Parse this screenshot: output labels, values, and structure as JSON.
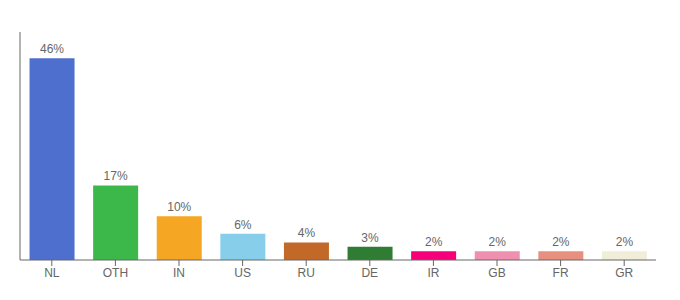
{
  "chart_data": {
    "type": "bar",
    "categories": [
      "NL",
      "OTH",
      "IN",
      "US",
      "RU",
      "DE",
      "IR",
      "GB",
      "FR",
      "GR"
    ],
    "values": [
      46,
      17,
      10,
      6,
      4,
      3,
      2,
      2,
      2,
      2
    ],
    "value_labels": [
      "46%",
      "17%",
      "10%",
      "6%",
      "4%",
      "3%",
      "2%",
      "2%",
      "2%",
      "2%"
    ],
    "colors": [
      "#4f6fce",
      "#3cb84a",
      "#f5a623",
      "#87ceeb",
      "#c2692a",
      "#2e7d32",
      "#f5007a",
      "#f090b0",
      "#e89080",
      "#f0eed8"
    ],
    "ylim": [
      0,
      52
    ],
    "grid": false,
    "data_labels": true,
    "tick_labels": "x"
  }
}
